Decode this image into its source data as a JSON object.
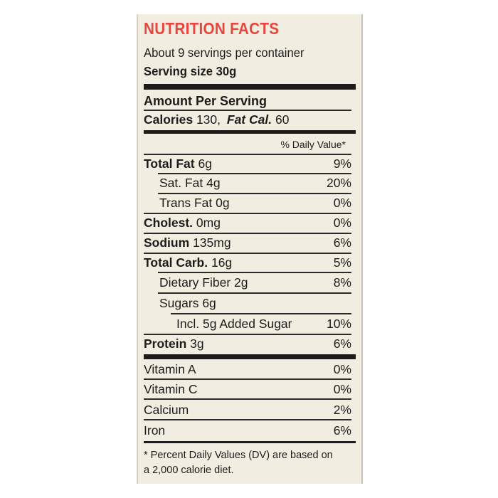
{
  "title": "NUTRITION FACTS",
  "servings": "About 9 servings per container",
  "serving_size": "Serving size 30g",
  "amount_per_serving": "Amount Per Serving",
  "calories_label": "Calories",
  "calories_value": "130,",
  "fat_cal_label": "Fat Cal.",
  "fat_cal_value": "60",
  "daily_value_header": "% Daily Value*",
  "nutrients": [
    {
      "label": "Total Fat",
      "amount": "6g",
      "dv": "9%"
    },
    {
      "label": "Sat. Fat",
      "amount": "4g",
      "dv": "20%"
    },
    {
      "label": "Trans Fat",
      "amount": "0g",
      "dv": "0%"
    },
    {
      "label": "Cholest.",
      "amount": "0mg",
      "dv": "0%"
    },
    {
      "label": "Sodium",
      "amount": "135mg",
      "dv": "6%"
    },
    {
      "label": "Total Carb.",
      "amount": "16g",
      "dv": "5%"
    },
    {
      "label": "Dietary Fiber",
      "amount": "2g",
      "dv": "8%"
    },
    {
      "label": "Sugars",
      "amount": "6g",
      "dv": ""
    },
    {
      "label": "Incl. 5g Added Sugar",
      "amount": "",
      "dv": "10%"
    },
    {
      "label": "Protein",
      "amount": "3g",
      "dv": "6%"
    }
  ],
  "vitamins": [
    {
      "label": "Vitamin A",
      "dv": "0%"
    },
    {
      "label": "Vitamin C",
      "dv": "0%"
    },
    {
      "label": "Calcium",
      "dv": "2%"
    },
    {
      "label": "Iron",
      "dv": "6%"
    }
  ],
  "footnote_line1": "* Percent Daily Values (DV) are based on",
  "footnote_line2": "a 2,000 calorie diet.",
  "colors": {
    "title": "#e8473e",
    "label_bg": "#f1ede1",
    "ink": "#1c1c1c"
  }
}
